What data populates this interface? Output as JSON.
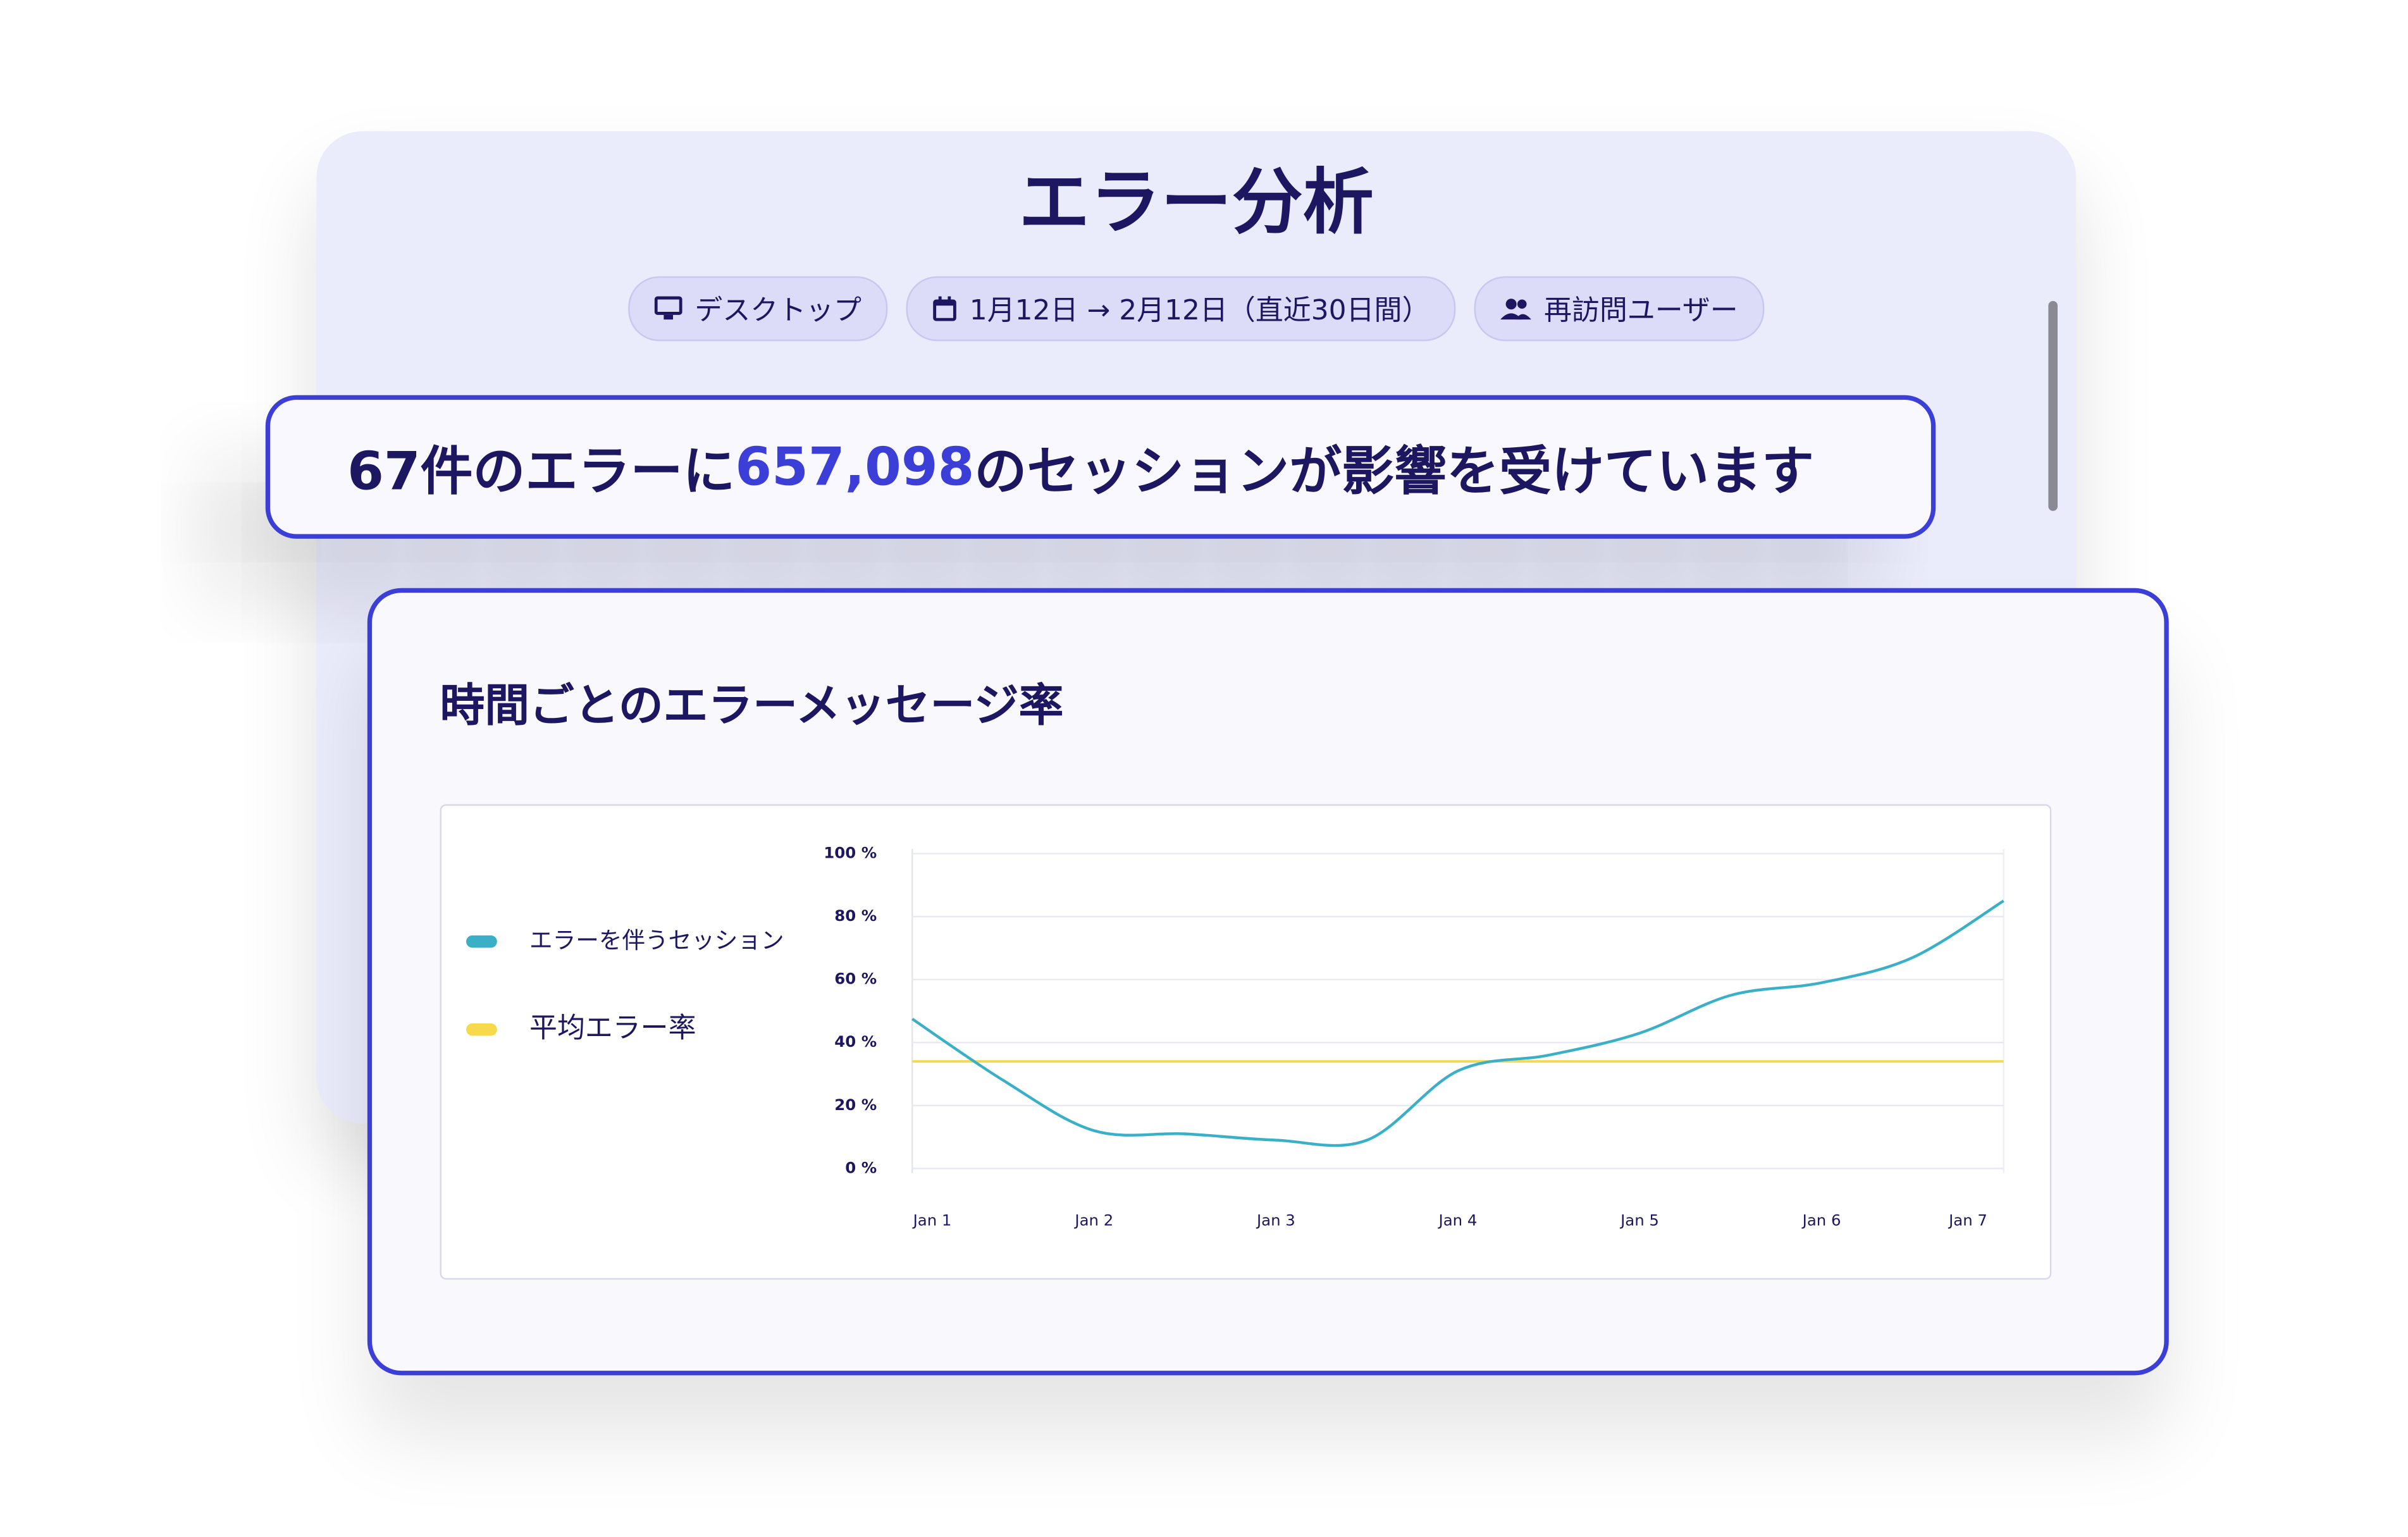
{
  "header": {
    "title": "エラー分析",
    "filters": [
      "デスクトップ",
      "1月12日 → 2月12日（直近30日間）",
      "再訪問ユーザー"
    ]
  },
  "headline": {
    "prefix": "67件のエラーに",
    "highlight": "657,098",
    "suffix": "のセッションが影響を受けています"
  },
  "chart_data": {
    "type": "line",
    "title": "時間ごとのエラーメッセージ率",
    "x": [
      "Jan 1",
      null,
      "Jan 2",
      null,
      "Jan 3",
      null,
      "Jan 4",
      null,
      "Jan 5",
      null,
      "Jan 6",
      null,
      "Jan 7"
    ],
    "series": [
      {
        "name": "エラーを伴うセッション",
        "color": "#3ab0c8",
        "values": [
          47.5,
          28,
          12,
          11,
          9,
          9,
          31,
          36,
          43,
          55,
          59,
          67,
          85
        ]
      },
      {
        "name": "平均エラー率",
        "color": "#f7d94c",
        "values": [
          34,
          34,
          34,
          34,
          34,
          34,
          34,
          34,
          34,
          34,
          34,
          34,
          34
        ]
      }
    ],
    "ylim": [
      0,
      100
    ],
    "yticks": [
      {
        "value": 0,
        "label": "0 %"
      },
      {
        "value": 20,
        "label": "20 %"
      },
      {
        "value": 40,
        "label": "40 %"
      },
      {
        "value": 60,
        "label": "60 %"
      },
      {
        "value": 80,
        "label": "80 %"
      },
      {
        "value": 100,
        "label": "100 %"
      }
    ],
    "grid": true,
    "legend": "left"
  }
}
